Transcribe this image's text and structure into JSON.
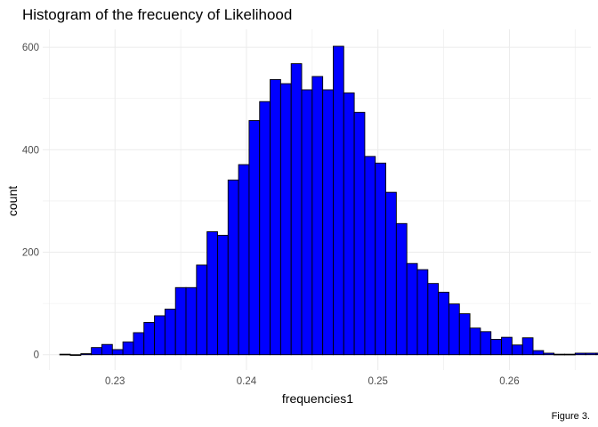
{
  "chart_data": {
    "type": "histogram",
    "title": "Histogram of the frecuency of Likelihood",
    "xlabel": "frequencies1",
    "ylabel": "count",
    "caption": "Figure 3.",
    "bar_fill": "#0000ff",
    "bar_stroke": "#000000",
    "grid": true,
    "xlim": [
      0.2245,
      0.2662
    ],
    "ylim": [
      -30,
      635
    ],
    "x_ticks": [
      0.23,
      0.24,
      0.25,
      0.26
    ],
    "x_tick_labels": [
      "0.23",
      "0.24",
      "0.25",
      "0.26"
    ],
    "y_ticks": [
      0,
      200,
      400,
      600
    ],
    "y_tick_labels": [
      "0",
      "200",
      "400",
      "600"
    ],
    "bin_width": 0.0008,
    "bin_start": 0.2258,
    "values": [
      1,
      0,
      2,
      14,
      20,
      10,
      25,
      43,
      63,
      76,
      89,
      131,
      131,
      175,
      240,
      233,
      341,
      371,
      457,
      494,
      537,
      529,
      568,
      517,
      543,
      517,
      602,
      511,
      473,
      387,
      374,
      317,
      256,
      178,
      166,
      139,
      122,
      99,
      80,
      52,
      45,
      30,
      34,
      19,
      33,
      8,
      3,
      1,
      1,
      3,
      3,
      3,
      1
    ]
  }
}
